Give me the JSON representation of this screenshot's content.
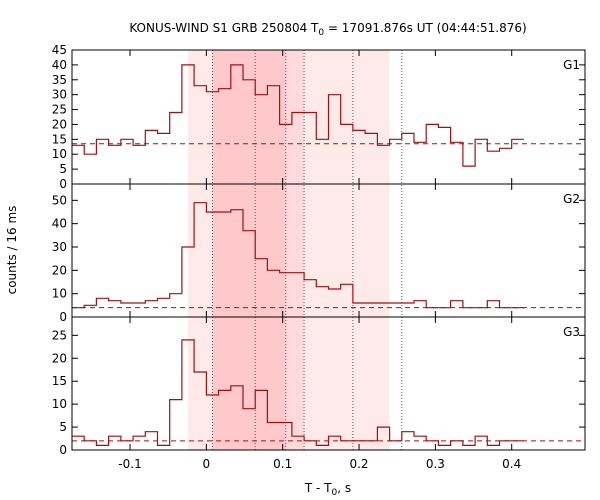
{
  "chart_data": {
    "type": "line",
    "title_main": "KONUS-WIND S1 GRB 250804 T",
    "title_sub": "0",
    "title_rest": " = 17091.876s UT (04:44:51.876)",
    "xlabel_main": "T - T",
    "xlabel_sub": "0",
    "xlabel_rest": ", s",
    "ylabel": "counts / 16 ms",
    "xlim": [
      -0.176,
      0.496
    ],
    "xticks": [
      -0.1,
      0,
      0.1,
      0.2,
      0.3,
      0.4
    ],
    "xtick_labels": [
      "-0.1",
      "0",
      "0.1",
      "0.2",
      "0.3",
      "0.4"
    ],
    "colors": {
      "curve": "#a01010",
      "shade_light": "#ffeaea",
      "shade_mid": "#ffd9db",
      "shade_dark": "#ffc9cc"
    },
    "shaded_intervals": [
      {
        "x": [
          -0.024,
          0.24
        ],
        "tone": "light"
      },
      {
        "x": [
          0.008,
          0.128
        ],
        "tone": "mid"
      },
      {
        "x": [
          0.008,
          0.104
        ],
        "tone": "dark"
      }
    ],
    "vertical_dotted_lines": [
      0.008,
      0.064,
      0.104,
      0.128,
      0.192,
      0.256
    ],
    "bin_width": 0.016,
    "bin_edges_start": -0.176,
    "panels": [
      {
        "name": "G1",
        "ylim": [
          0,
          45
        ],
        "yticks": [
          0,
          5,
          10,
          15,
          20,
          25,
          30,
          35,
          40,
          45
        ],
        "background_level": 13.5,
        "values": [
          13,
          10,
          15,
          13,
          15,
          13,
          18,
          17,
          24,
          40,
          33,
          31,
          32,
          40,
          35,
          30,
          33,
          20,
          24,
          24,
          15,
          30,
          20,
          18,
          17,
          13,
          15,
          17,
          14,
          20,
          19,
          14,
          6,
          15,
          11,
          12,
          15
        ]
      },
      {
        "name": "G2",
        "ylim": [
          0,
          57
        ],
        "yticks": [
          0,
          10,
          20,
          30,
          40,
          50
        ],
        "background_level": 4,
        "values": [
          4,
          5,
          8,
          7,
          6,
          6,
          7,
          8,
          10,
          30,
          49,
          45,
          45,
          46,
          37,
          25,
          20,
          19,
          19,
          16,
          13,
          12,
          14,
          6,
          6,
          6,
          6,
          6,
          7,
          4,
          4,
          7,
          4,
          4,
          7,
          4,
          4
        ]
      },
      {
        "name": "G3",
        "ylim": [
          0,
          29
        ],
        "yticks": [
          0,
          5,
          10,
          15,
          20,
          25
        ],
        "background_level": 2,
        "values": [
          3,
          2,
          1,
          3,
          2,
          3,
          4,
          1,
          11,
          24,
          17,
          12,
          13,
          14,
          9,
          13,
          6,
          6,
          3,
          2,
          1,
          3,
          2,
          2,
          2,
          5,
          2,
          4,
          3,
          2,
          1,
          2,
          1,
          3,
          1,
          2,
          2
        ]
      }
    ]
  }
}
